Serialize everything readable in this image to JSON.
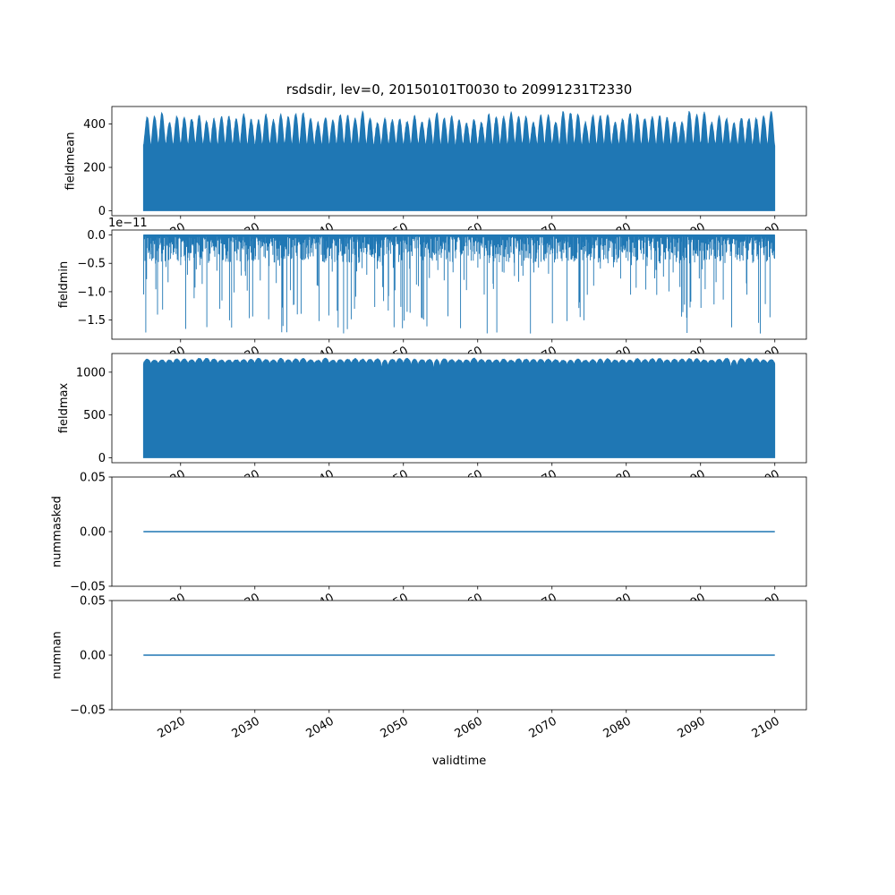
{
  "figure": {
    "title": "rsdsdir, lev=0, 20150101T0030 to 20991231T2330",
    "xlabel": "validtime",
    "background": "#ffffff"
  },
  "chart_data": {
    "type": "line",
    "title": "rsdsdir, lev=0, 20150101T0030 to 20991231T2330",
    "xlabel": "validtime",
    "series_color": "#1f77b4",
    "x_range_data": [
      2015.0,
      2100.0
    ],
    "xlim": [
      2010.75,
      2104.25
    ],
    "xtick_rotation": 30,
    "xticks": [
      {
        "v": 2020,
        "label": "2020"
      },
      {
        "v": 2030,
        "label": "2030"
      },
      {
        "v": 2040,
        "label": "2040"
      },
      {
        "v": 2050,
        "label": "2050"
      },
      {
        "v": 2060,
        "label": "2060"
      },
      {
        "v": 2070,
        "label": "2070"
      },
      {
        "v": 2080,
        "label": "2080"
      },
      {
        "v": 2090,
        "label": "2090"
      },
      {
        "v": 2100,
        "label": "2100"
      }
    ],
    "subplots": [
      {
        "name": "fieldmean",
        "ylabel": "fieldmean",
        "kind": "area",
        "ylim": [
          -22.9,
          480.9
        ],
        "yticks": [
          {
            "v": 0,
            "label": "0"
          },
          {
            "v": 200,
            "label": "200"
          },
          {
            "v": 400,
            "label": "400"
          }
        ],
        "baseline": 0,
        "envelope": {
          "valley": 302,
          "peak_min": 402,
          "peak_max": 458,
          "jitter": 10,
          "power": 0.75,
          "notch_prob": 0,
          "notch_depth": 0
        },
        "samples_per_year": 20,
        "seed": 11
      },
      {
        "name": "fieldmin",
        "ylabel": "fieldmin",
        "kind": "spikes",
        "offset_text": "1e−11",
        "scale_note": "values in units of 1e-11",
        "ylim": [
          -1.8375,
          0.0875
        ],
        "yticks": [
          {
            "v": 0,
            "label": "0.0"
          },
          {
            "v": -0.5,
            "label": "−0.5"
          },
          {
            "v": -1.0,
            "label": "−1.0"
          },
          {
            "v": -1.5,
            "label": "−1.5"
          }
        ],
        "baseline": 0,
        "spikes": {
          "count": 1500,
          "shallow_min": 0.03,
          "shallow_max": 0.5,
          "deep_prob": 0.09,
          "deep_max": 1.75
        },
        "seed": 23
      },
      {
        "name": "fieldmax",
        "ylabel": "fieldmax",
        "kind": "area",
        "ylim": [
          -58,
          1218
        ],
        "yticks": [
          {
            "v": 0,
            "label": "0"
          },
          {
            "v": 500,
            "label": "500"
          },
          {
            "v": 1000,
            "label": "1000"
          }
        ],
        "baseline": 0,
        "envelope": {
          "valley": 1092,
          "peak_min": 1138,
          "peak_max": 1162,
          "jitter": 8,
          "power": 0.3,
          "notch_prob": 0.12,
          "notch_depth": 90
        },
        "samples_per_year": 20,
        "seed": 37
      },
      {
        "name": "nummasked",
        "ylabel": "nummasked",
        "kind": "hline",
        "value": 0,
        "ylim": [
          -0.05,
          0.05
        ],
        "yticks": [
          {
            "v": -0.05,
            "label": "−0.05"
          },
          {
            "v": 0,
            "label": "0.00"
          },
          {
            "v": 0.05,
            "label": "0.05"
          }
        ]
      },
      {
        "name": "numnan",
        "ylabel": "numnan",
        "kind": "hline",
        "value": 0,
        "ylim": [
          -0.05,
          0.05
        ],
        "yticks": [
          {
            "v": -0.05,
            "label": "−0.05"
          },
          {
            "v": 0,
            "label": "0.00"
          },
          {
            "v": 0.05,
            "label": "0.05"
          }
        ]
      }
    ]
  }
}
